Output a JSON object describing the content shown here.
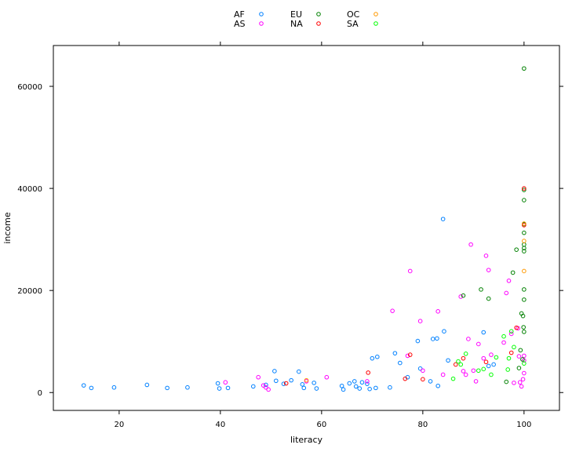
{
  "chart_data": {
    "type": "scatter",
    "xlabel": "literacy",
    "ylabel": "income",
    "xlim": [
      7,
      107
    ],
    "ylim": [
      -3500,
      68000
    ],
    "xticks": [
      20,
      40,
      60,
      80,
      100
    ],
    "yticks": [
      0,
      20000,
      40000,
      60000
    ],
    "legend_position": "top",
    "series": [
      {
        "name": "AF",
        "color": "#0080ff",
        "points": [
          [
            13,
            1400
          ],
          [
            14.5,
            900
          ],
          [
            19,
            1000
          ],
          [
            25.5,
            1500
          ],
          [
            29.5,
            900
          ],
          [
            33.5,
            1000
          ],
          [
            39.5,
            1800
          ],
          [
            39.8,
            800
          ],
          [
            41.5,
            900
          ],
          [
            46.5,
            1200
          ],
          [
            49,
            1500
          ],
          [
            50.7,
            4200
          ],
          [
            51,
            2300
          ],
          [
            52.5,
            1700
          ],
          [
            54,
            2400
          ],
          [
            55.5,
            4100
          ],
          [
            56.2,
            1600
          ],
          [
            56.5,
            900
          ],
          [
            58.5,
            1900
          ],
          [
            59,
            800
          ],
          [
            64,
            1300
          ],
          [
            64.3,
            600
          ],
          [
            65.5,
            1800
          ],
          [
            66.5,
            2200
          ],
          [
            66.8,
            1200
          ],
          [
            67.5,
            800
          ],
          [
            68,
            2000
          ],
          [
            69,
            1700
          ],
          [
            69.5,
            700
          ],
          [
            70,
            6700
          ],
          [
            70.7,
            900
          ],
          [
            71,
            7000
          ],
          [
            73.5,
            1000
          ],
          [
            74.5,
            7700
          ],
          [
            75.5,
            5800
          ],
          [
            77,
            3000
          ],
          [
            79,
            10100
          ],
          [
            79.5,
            4700
          ],
          [
            81.5,
            2200
          ],
          [
            82,
            10500
          ],
          [
            82.8,
            10600
          ],
          [
            83,
            1300
          ],
          [
            84,
            34000
          ],
          [
            84.2,
            12000
          ],
          [
            85,
            6300
          ],
          [
            92,
            11800
          ],
          [
            93,
            5200
          ],
          [
            94,
            5500
          ]
        ]
      },
      {
        "name": "AS",
        "color": "#ff00ff",
        "points": [
          [
            41,
            2000
          ],
          [
            47.5,
            3000
          ],
          [
            48.5,
            1400
          ],
          [
            49,
            1000
          ],
          [
            49.5,
            600
          ],
          [
            57,
            2200
          ],
          [
            61,
            3000
          ],
          [
            69,
            2200
          ],
          [
            74,
            16000
          ],
          [
            77,
            7200
          ],
          [
            77.5,
            23800
          ],
          [
            79.5,
            14000
          ],
          [
            80,
            4300
          ],
          [
            83,
            15900
          ],
          [
            84,
            3500
          ],
          [
            87.5,
            18800
          ],
          [
            88,
            4200
          ],
          [
            88.5,
            3500
          ],
          [
            89,
            10500
          ],
          [
            89.5,
            29000
          ],
          [
            90,
            4300
          ],
          [
            90.5,
            2200
          ],
          [
            91,
            9500
          ],
          [
            92,
            6700
          ],
          [
            92.5,
            26800
          ],
          [
            93,
            24000
          ],
          [
            93.5,
            7400
          ],
          [
            96,
            9800
          ],
          [
            96.5,
            19500
          ],
          [
            97,
            21900
          ],
          [
            97.5,
            11500
          ],
          [
            98,
            1900
          ],
          [
            98.8,
            12600
          ],
          [
            99,
            7100
          ],
          [
            99.2,
            2000
          ],
          [
            99.5,
            1200
          ],
          [
            99.8,
            2600
          ],
          [
            100,
            3800
          ],
          [
            100,
            6300
          ],
          [
            100,
            7200
          ]
        ]
      },
      {
        "name": "EU",
        "color": "#008000",
        "points": [
          [
            88,
            19000
          ],
          [
            91.5,
            20200
          ],
          [
            93,
            18400
          ],
          [
            96.5,
            2100
          ],
          [
            97.8,
            23500
          ],
          [
            98.5,
            28000
          ],
          [
            99,
            4800
          ],
          [
            99.3,
            8300
          ],
          [
            99.5,
            15500
          ],
          [
            99.8,
            15000
          ],
          [
            99.9,
            12800
          ],
          [
            100,
            11900
          ],
          [
            100,
            18200
          ],
          [
            100,
            20200
          ],
          [
            100,
            27700
          ],
          [
            100,
            28300
          ],
          [
            100,
            29000
          ],
          [
            100,
            31300
          ],
          [
            100,
            33000
          ],
          [
            100,
            37700
          ],
          [
            100,
            39700
          ],
          [
            100,
            63500
          ],
          [
            99.7,
            6500
          ]
        ]
      },
      {
        "name": "NA",
        "color": "#ff0000",
        "points": [
          [
            53,
            1800
          ],
          [
            69.2,
            3900
          ],
          [
            76.5,
            2700
          ],
          [
            77.5,
            7400
          ],
          [
            80,
            2600
          ],
          [
            86.5,
            5500
          ],
          [
            88,
            6700
          ],
          [
            92.5,
            6000
          ],
          [
            97.5,
            7800
          ],
          [
            98.5,
            12700
          ],
          [
            100,
            32800
          ],
          [
            100,
            40000
          ]
        ]
      },
      {
        "name": "OC",
        "color": "#ff9900",
        "points": [
          [
            57,
            2400
          ],
          [
            100,
            23800
          ],
          [
            100,
            29700
          ],
          [
            100,
            33100
          ]
        ]
      },
      {
        "name": "SA",
        "color": "#00ff00",
        "points": [
          [
            86,
            2700
          ],
          [
            87,
            6100
          ],
          [
            87.5,
            5500
          ],
          [
            88.5,
            7600
          ],
          [
            91,
            4300
          ],
          [
            92,
            4600
          ],
          [
            93.5,
            3500
          ],
          [
            94.5,
            6900
          ],
          [
            96,
            11000
          ],
          [
            96.8,
            4500
          ],
          [
            97,
            6700
          ],
          [
            97.5,
            12000
          ],
          [
            98,
            8900
          ],
          [
            100,
            5700
          ]
        ]
      }
    ]
  }
}
